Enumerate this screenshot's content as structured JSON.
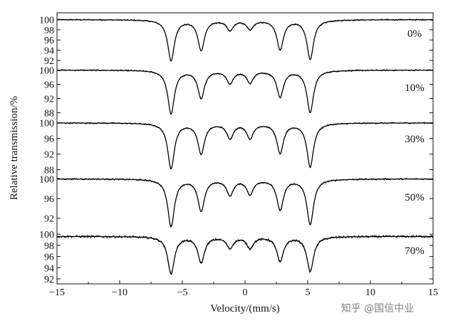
{
  "chart_data": {
    "type": "line",
    "xlabel": "Velocity/(mm/s)",
    "ylabel": "Relative transmission/%",
    "xlim": [
      -15,
      15
    ],
    "x_ticks": [
      -15,
      -10,
      -5,
      0,
      5,
      10,
      15
    ],
    "x_tick_labels": [
      "−15",
      "−10",
      "−5",
      "0",
      "5",
      "10",
      "15"
    ],
    "sextet_line_positions": [
      -5.9,
      -3.5,
      -1.2,
      0.4,
      2.8,
      5.2
    ],
    "panels": [
      {
        "label": "0%",
        "ylim": [
          91,
          100.5
        ],
        "y_ticks": [
          100,
          98,
          96,
          94,
          92
        ],
        "y_tick_labels": [
          "100",
          "98",
          "96",
          "94",
          "92"
        ],
        "baseline": 100.0,
        "dip_minima": [
          92.0,
          94.1,
          98.0,
          98.2,
          94.2,
          92.3
        ]
      },
      {
        "label": "10%",
        "ylim": [
          86.5,
          100.5
        ],
        "y_ticks": [
          100,
          96,
          92,
          88
        ],
        "y_tick_labels": [
          "100",
          "96",
          "92",
          "88"
        ],
        "baseline": 100.0,
        "dip_minima": [
          87.8,
          92.2,
          96.4,
          96.6,
          92.6,
          88.2
        ]
      },
      {
        "label": "30%",
        "ylim": [
          87,
          100.5
        ],
        "y_ticks": [
          100,
          96,
          92,
          88
        ],
        "y_tick_labels": [
          "100",
          "96",
          "92",
          "88"
        ],
        "baseline": 100.0,
        "dip_minima": [
          88.4,
          92.2,
          96.2,
          96.2,
          92.4,
          88.8
        ]
      },
      {
        "label": "50%",
        "ylim": [
          89.5,
          100.5
        ],
        "y_ticks": [
          100,
          96,
          92
        ],
        "y_tick_labels": [
          "100",
          "96",
          "92"
        ],
        "baseline": 100.0,
        "dip_minima": [
          90.4,
          93.6,
          96.8,
          97.0,
          93.8,
          90.8
        ]
      },
      {
        "label": "70%",
        "ylim": [
          92,
          100.4
        ],
        "y_ticks": [
          100,
          98,
          96,
          94,
          92
        ],
        "y_tick_labels": [
          "100",
          "98",
          "96",
          "94",
          "92"
        ],
        "baseline": 99.6,
        "dip_minima": [
          93.0,
          95.0,
          97.6,
          97.6,
          95.2,
          93.4
        ]
      }
    ]
  },
  "watermark": {
    "text": "知乎 @国信中业"
  }
}
